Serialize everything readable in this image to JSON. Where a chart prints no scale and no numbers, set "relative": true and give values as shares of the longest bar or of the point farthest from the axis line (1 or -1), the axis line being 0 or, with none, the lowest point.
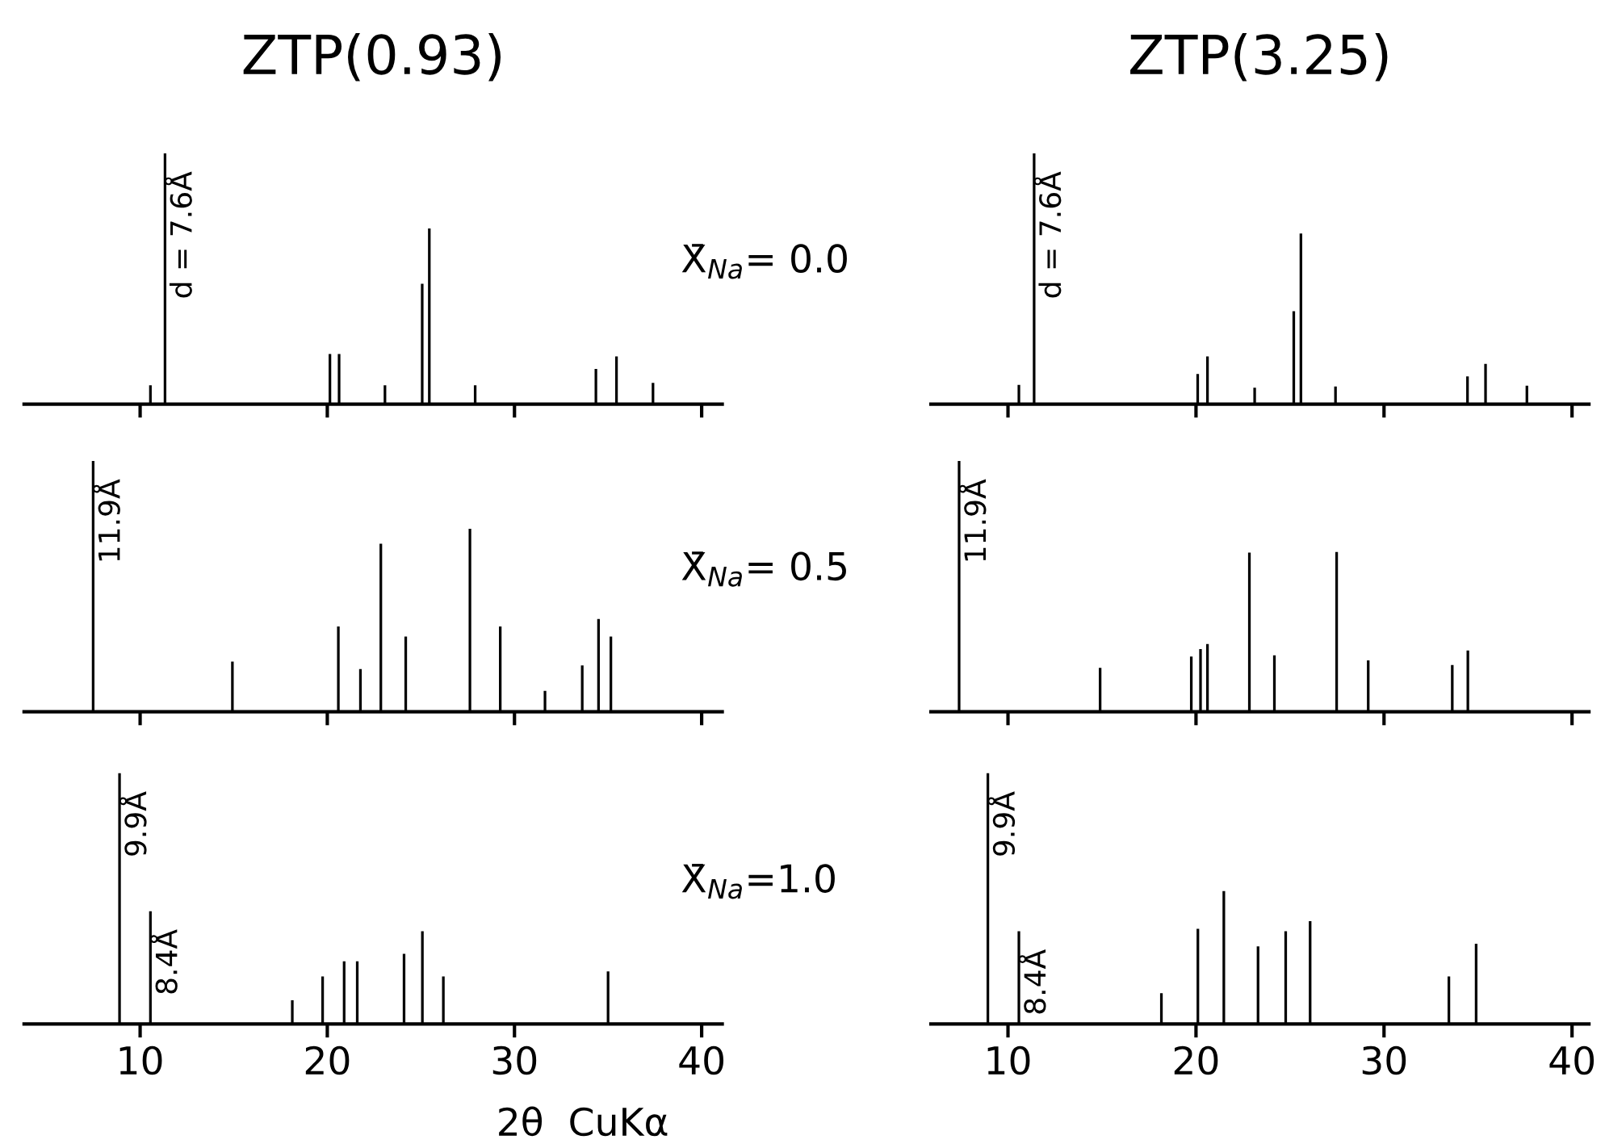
{
  "chart_data": [
    {
      "type": "bar",
      "title": "ZTP(0.93)",
      "relative": true,
      "color": "#000000",
      "xlim": [
        3.8,
        41.1
      ],
      "xticks": [
        10,
        20,
        30,
        40
      ],
      "tick_labels": false,
      "x": [
        10.55,
        11.33,
        20.14,
        20.63,
        23.08,
        25.07,
        25.45,
        27.9,
        34.35,
        35.45,
        37.4
      ],
      "values": [
        0.075,
        1.0,
        0.2,
        0.2,
        0.075,
        0.48,
        0.7,
        0.075,
        0.14,
        0.19,
        0.085
      ],
      "annotations": [
        {
          "text": "d = 7.6Å",
          "x": 11.33,
          "y": 1.0
        }
      ]
    },
    {
      "type": "bar",
      "title": "ZTP(3.25)",
      "relative": true,
      "color": "#000000",
      "xlim": [
        5.9,
        40.9
      ],
      "xticks": [
        10,
        20,
        30,
        40
      ],
      "tick_labels": false,
      "x": [
        10.58,
        11.39,
        20.09,
        20.61,
        23.12,
        25.2,
        25.58,
        27.42,
        34.44,
        35.4,
        37.6
      ],
      "values": [
        0.077,
        1.0,
        0.12,
        0.19,
        0.065,
        0.37,
        0.68,
        0.07,
        0.11,
        0.16,
        0.073
      ],
      "annotations": [
        {
          "text": "d = 7.6Å",
          "x": 11.39,
          "y": 1.0
        },
        "X̄$_{Na}$= 0.0"
      ]
    },
    {
      "type": "bar",
      "relative": true,
      "color": "#000000",
      "xlim": [
        3.8,
        41.1
      ],
      "xticks": [
        10,
        20,
        30,
        40
      ],
      "tick_labels": false,
      "x": [
        7.49,
        14.93,
        20.59,
        21.77,
        22.86,
        24.19,
        27.62,
        29.24,
        31.63,
        33.62,
        34.49,
        35.15
      ],
      "values": [
        1.0,
        0.2,
        0.34,
        0.17,
        0.67,
        0.3,
        0.73,
        0.34,
        0.083,
        0.185,
        0.37,
        0.3
      ],
      "annotations": [
        {
          "text": "11.9Å",
          "x": 7.49,
          "y": 1.0
        }
      ]
    },
    {
      "type": "bar",
      "relative": true,
      "color": "#000000",
      "xlim": [
        5.9,
        40.9
      ],
      "xticks": [
        10,
        20,
        30,
        40
      ],
      "tick_labels": false,
      "x": [
        7.4,
        14.9,
        19.75,
        20.24,
        20.61,
        22.84,
        24.17,
        27.48,
        29.16,
        33.63,
        34.46
      ],
      "values": [
        1.0,
        0.175,
        0.22,
        0.25,
        0.27,
        0.635,
        0.225,
        0.637,
        0.205,
        0.186,
        0.244
      ],
      "annotations": [
        {
          "text": "11.9Å",
          "x": 7.4,
          "y": 1.0
        },
        "X̄$_{Na}$= 0.5"
      ]
    },
    {
      "type": "bar",
      "relative": true,
      "color": "#000000",
      "xlim": [
        3.8,
        41.1
      ],
      "xticks": [
        10,
        20,
        30,
        40
      ],
      "tick_labels": "x",
      "xlabel": "2θ  CuKα",
      "x": [
        8.9,
        10.55,
        18.13,
        19.75,
        20.9,
        21.6,
        24.1,
        25.08,
        26.2,
        35.0
      ],
      "values": [
        1.0,
        0.45,
        0.095,
        0.19,
        0.25,
        0.25,
        0.28,
        0.37,
        0.19,
        0.21
      ],
      "annotations": [
        {
          "text": "9.9Å",
          "x": 8.9,
          "y": 1.0
        },
        {
          "text": "8.4Å",
          "x": 10.55,
          "y": 0.45
        }
      ]
    },
    {
      "type": "bar",
      "relative": true,
      "color": "#000000",
      "xlim": [
        5.9,
        40.9
      ],
      "xticks": [
        10,
        20,
        30,
        40
      ],
      "tick_labels": "x",
      "x": [
        8.93,
        10.58,
        18.16,
        20.1,
        21.48,
        23.3,
        24.77,
        26.07,
        33.45,
        34.9
      ],
      "values": [
        1.0,
        0.37,
        0.123,
        0.38,
        0.53,
        0.31,
        0.37,
        0.41,
        0.19,
        0.32
      ],
      "annotations": [
        {
          "text": "9.9Å",
          "x": 8.93,
          "y": 1.0
        },
        {
          "text": "8.4Å",
          "x": 10.58,
          "y": 0.37
        },
        "X̄$_{Na}$=1.0"
      ]
    }
  ]
}
